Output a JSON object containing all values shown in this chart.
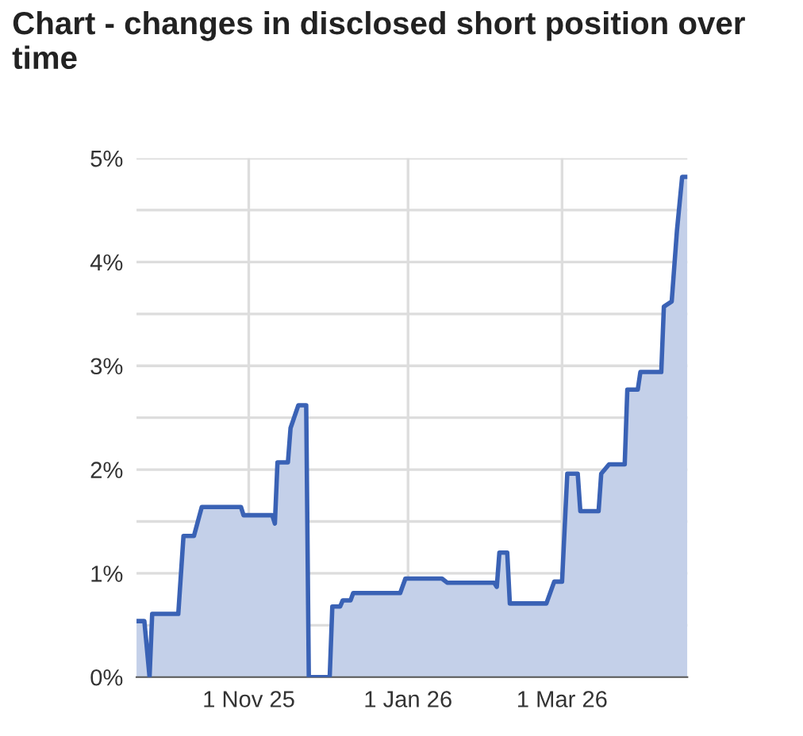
{
  "chart_data": {
    "type": "area",
    "title": "Chart - changes in disclosed short position over time",
    "x": [
      "2025-09-19",
      "2025-09-22",
      "2025-09-24",
      "2025-09-25",
      "2025-10-05",
      "2025-10-07",
      "2025-10-11",
      "2025-10-14",
      "2025-10-29",
      "2025-10-30",
      "2025-11-10",
      "2025-11-11",
      "2025-11-12",
      "2025-11-16",
      "2025-11-17",
      "2025-11-20",
      "2025-11-23",
      "2025-11-24",
      "2025-12-02",
      "2025-12-03",
      "2025-12-06",
      "2025-12-07",
      "2025-12-10",
      "2025-12-11",
      "2025-12-29",
      "2025-12-31",
      "2026-01-14",
      "2026-01-16",
      "2026-02-03",
      "2026-02-04",
      "2026-02-05",
      "2026-02-08",
      "2026-02-09",
      "2026-02-23",
      "2026-02-26",
      "2026-03-01",
      "2026-03-03",
      "2026-03-07",
      "2026-03-08",
      "2026-03-15",
      "2026-03-16",
      "2026-03-19",
      "2026-03-25",
      "2026-03-26",
      "2026-03-30",
      "2026-03-31",
      "2026-04-08",
      "2026-04-09",
      "2026-04-12",
      "2026-04-14",
      "2026-04-16",
      "2026-04-18"
    ],
    "series": [
      {
        "color": "#3a62b5",
        "values": [
          0.54,
          0.54,
          0,
          0.61,
          0.61,
          1.36,
          1.36,
          1.64,
          1.64,
          1.56,
          1.56,
          1.48,
          2.07,
          2.07,
          2.4,
          2.62,
          2.62,
          0,
          0,
          0.68,
          0.68,
          0.74,
          0.74,
          0.81,
          0.81,
          0.95,
          0.95,
          0.91,
          0.91,
          0.87,
          1.2,
          1.2,
          0.71,
          0.71,
          0.92,
          0.92,
          1.96,
          1.96,
          1.6,
          1.6,
          1.96,
          2.05,
          2.05,
          2.77,
          2.77,
          2.94,
          2.94,
          3.57,
          3.62,
          4.3,
          4.82,
          4.82
        ]
      }
    ],
    "xlim": [
      "2025-09-19",
      "2026-04-18"
    ],
    "xticks": [
      {
        "value": "2025-11-01",
        "label": "1 Nov 25"
      },
      {
        "value": "2026-01-01",
        "label": "1 Jan 26"
      },
      {
        "value": "2026-03-01",
        "label": "1 Mar 26"
      }
    ],
    "ylim": [
      0,
      5
    ],
    "yticks": [
      {
        "value": 0,
        "label": "0%"
      },
      {
        "value": 0.5,
        "label": null
      },
      {
        "value": 1,
        "label": "1%"
      },
      {
        "value": 1.5,
        "label": null
      },
      {
        "value": 2,
        "label": "2%"
      },
      {
        "value": 2.5,
        "label": null
      },
      {
        "value": 3,
        "label": "3%"
      },
      {
        "value": 3.5,
        "label": null
      },
      {
        "value": 4,
        "label": "4%"
      },
      {
        "value": 4.5,
        "label": null
      },
      {
        "value": 5,
        "label": "5%"
      }
    ],
    "grid": true
  }
}
